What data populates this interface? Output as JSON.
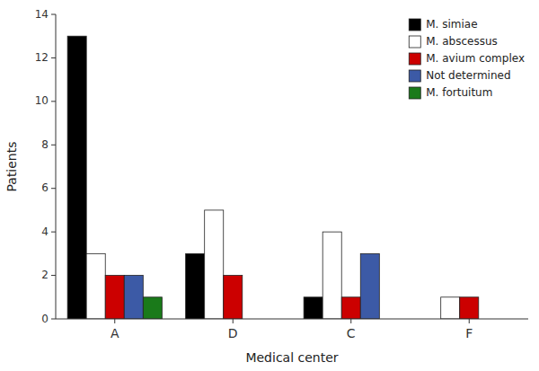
{
  "chart_data": {
    "type": "bar",
    "categories": [
      "A",
      "D",
      "C",
      "F"
    ],
    "series": [
      {
        "name": "M. simiae",
        "color": "#000000",
        "values": [
          13,
          3,
          1,
          0
        ]
      },
      {
        "name": "M. abscessus",
        "color": "#ffffff",
        "values": [
          3,
          5,
          4,
          1
        ]
      },
      {
        "name": "M. avium complex",
        "color": "#cc0000",
        "values": [
          2,
          2,
          1,
          1
        ]
      },
      {
        "name": "Not determined",
        "color": "#3c5aa6",
        "values": [
          2,
          0,
          3,
          0
        ]
      },
      {
        "name": "M. fortuitum",
        "color": "#1a7a1a",
        "values": [
          1,
          0,
          0,
          0
        ]
      }
    ],
    "xlabel": "Medical center",
    "ylabel": "Patients",
    "ylim": [
      0,
      14
    ],
    "yticks": [
      0,
      2,
      4,
      6,
      8,
      10,
      12,
      14
    ],
    "grid": false,
    "legend": "upper right"
  }
}
